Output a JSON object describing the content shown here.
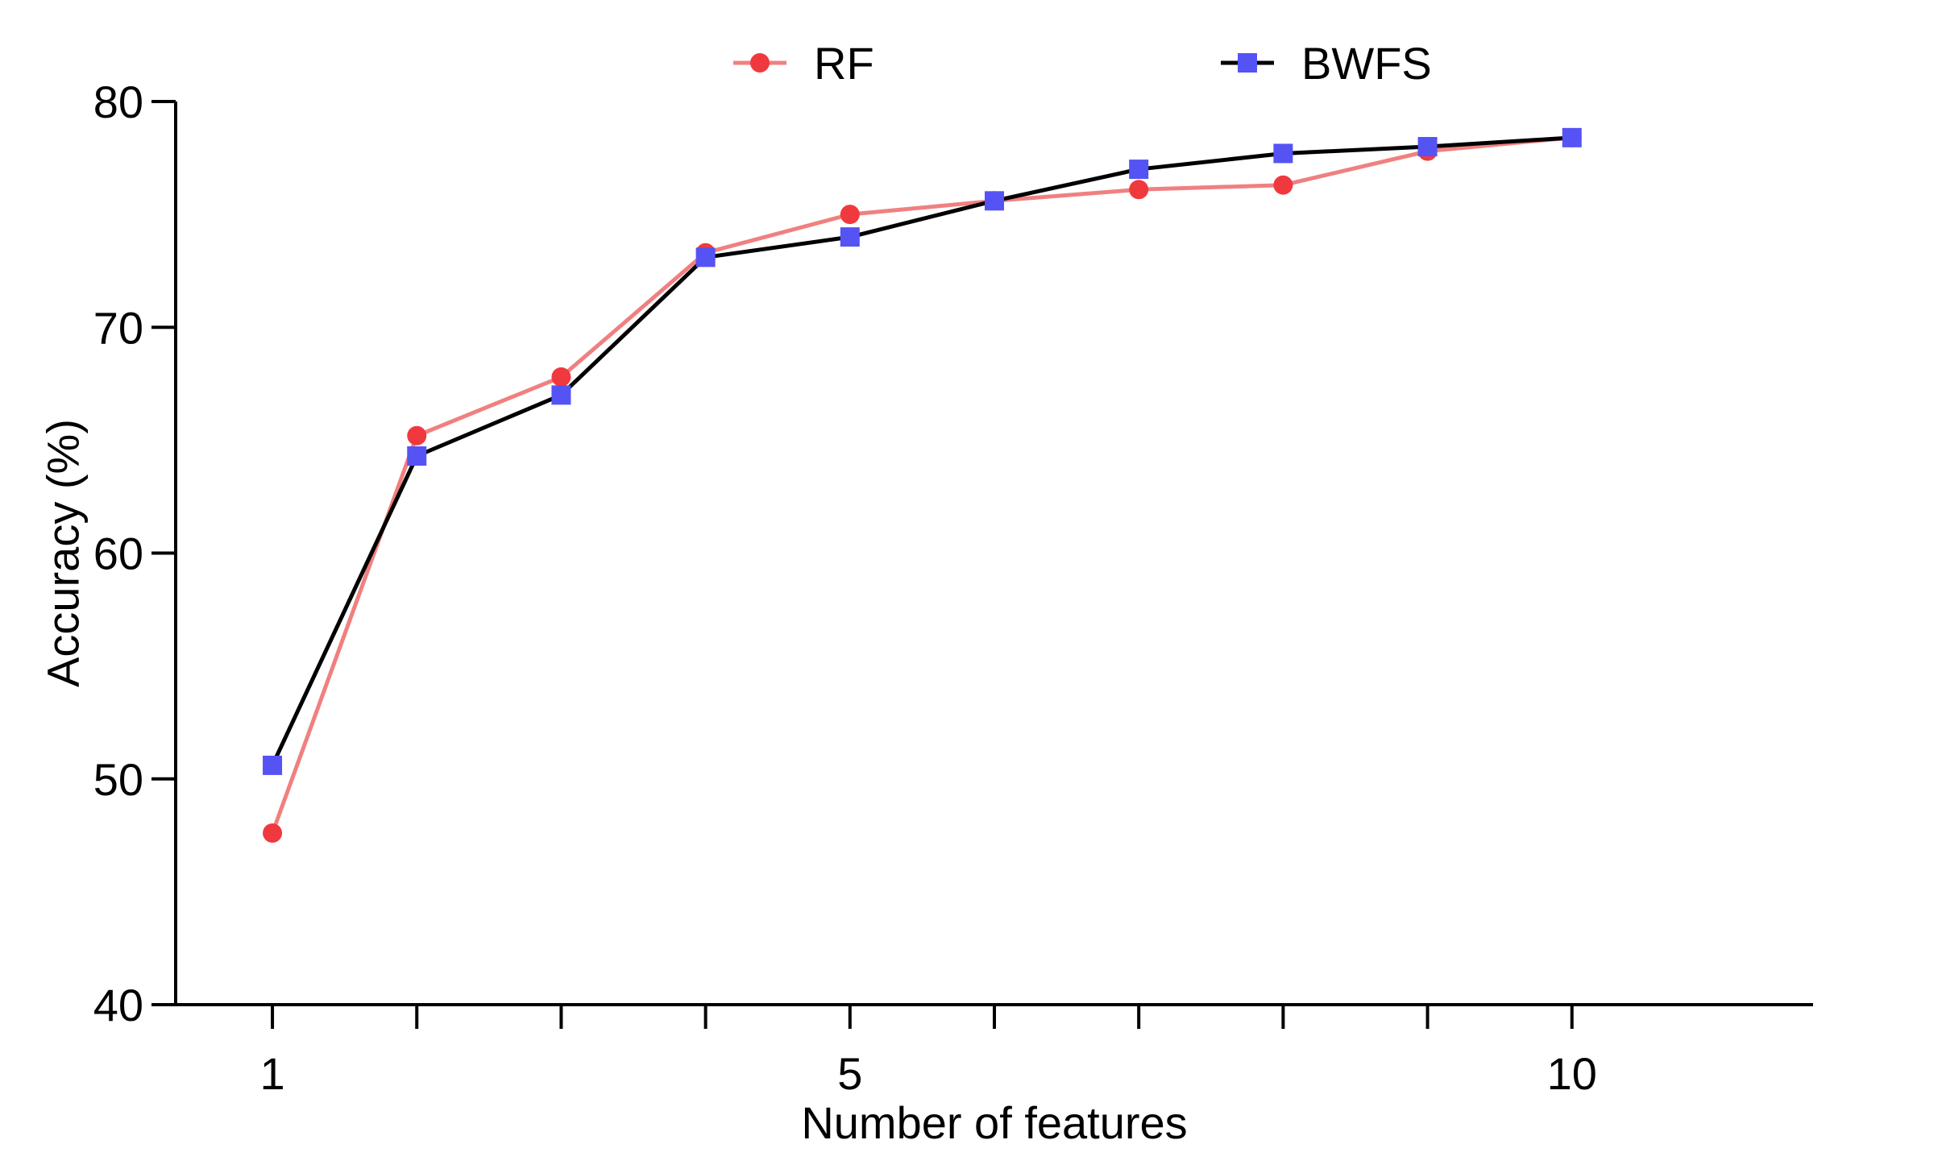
{
  "chart_data": {
    "type": "line",
    "xlabel": "Number of features",
    "ylabel": "Accuracy (%)",
    "xlim": [
      0.33,
      11.67
    ],
    "ylim": [
      40,
      80
    ],
    "x": [
      1,
      2,
      3,
      4,
      5,
      6,
      7,
      8,
      9,
      10
    ],
    "x_ticks": [
      1,
      2,
      3,
      4,
      5,
      6,
      7,
      8,
      9,
      10
    ],
    "x_tick_labels": [
      "1",
      "",
      "",
      "",
      "5",
      "",
      "",
      "",
      "",
      "10"
    ],
    "y_ticks": [
      40,
      50,
      60,
      70,
      80
    ],
    "y_tick_labels": [
      "40",
      "50",
      "60",
      "70",
      "80"
    ],
    "grid": false,
    "legend_position": "top",
    "series": [
      {
        "name": "RF",
        "values": [
          47.6,
          65.2,
          67.8,
          73.3,
          75.0,
          75.6,
          76.1,
          76.3,
          77.8,
          78.4
        ],
        "line_color": "#f08080",
        "marker_color": "#f0393f",
        "marker": "circle"
      },
      {
        "name": "BWFS",
        "values": [
          50.6,
          64.3,
          67.0,
          73.1,
          74.0,
          75.6,
          77.0,
          77.7,
          78.0,
          78.4
        ],
        "line_color": "#000000",
        "marker_color": "#5553f3",
        "marker": "square"
      }
    ]
  }
}
